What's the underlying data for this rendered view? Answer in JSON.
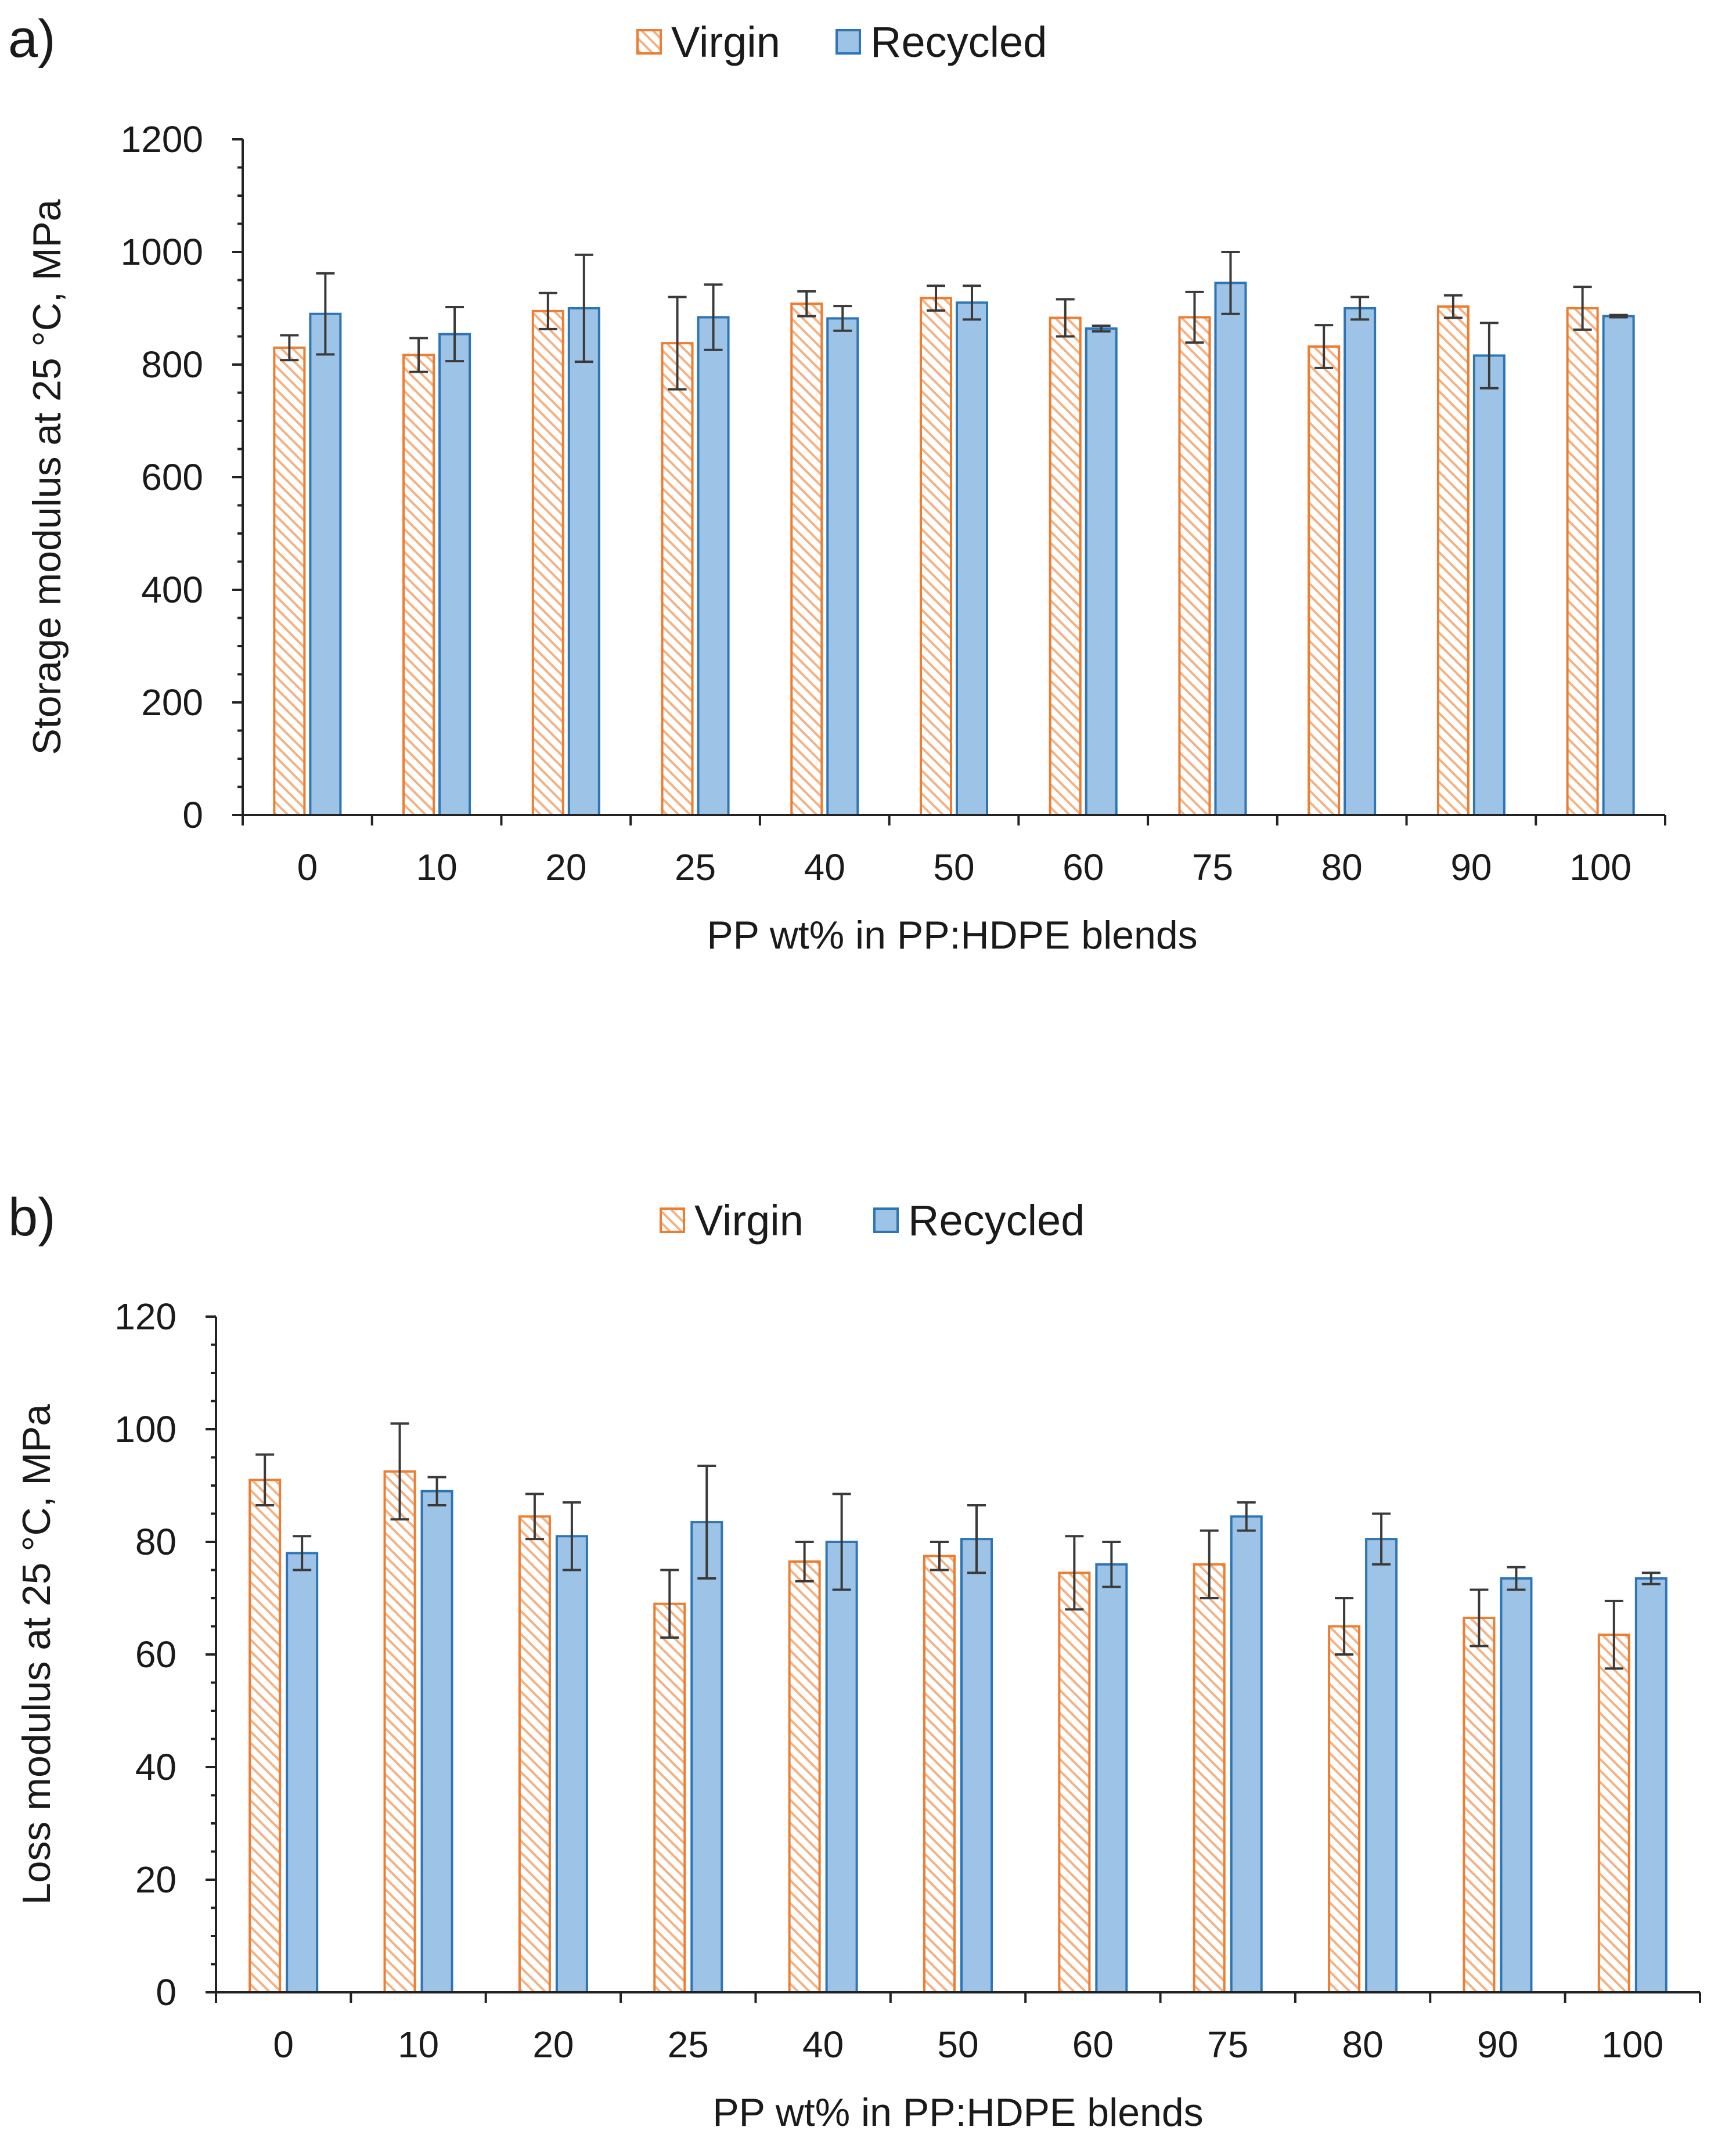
{
  "colors": {
    "virgin_stroke": "#ED7D31",
    "virgin_hatch": "#F4B183",
    "recycled_fill": "#9DC3E6",
    "recycled_stroke": "#2E75B6",
    "axis": "#222222",
    "text": "#1a1a1a"
  },
  "chart_data": [
    {
      "panel": "a)",
      "type": "bar",
      "categories": [
        "0",
        "10",
        "20",
        "25",
        "40",
        "50",
        "60",
        "75",
        "80",
        "90",
        "100"
      ],
      "series": [
        {
          "name": "Virgin",
          "values": [
            830,
            817,
            895,
            838,
            908,
            918,
            883,
            884,
            832,
            903,
            900
          ],
          "errors": [
            22,
            30,
            32,
            82,
            22,
            22,
            33,
            45,
            38,
            20,
            38
          ]
        },
        {
          "name": "Recycled",
          "values": [
            890,
            854,
            900,
            884,
            882,
            910,
            864,
            945,
            900,
            816,
            886
          ],
          "errors": [
            72,
            48,
            95,
            58,
            22,
            30,
            5,
            55,
            20,
            58,
            2
          ]
        }
      ],
      "xlabel": "PP wt% in PP:HDPE blends",
      "ylabel": "Storage modulus at 25 °C, MPa",
      "ylim": [
        0,
        1200
      ],
      "yticks": [
        "0",
        "200",
        "400",
        "600",
        "800",
        "1000",
        "1200"
      ],
      "legend": [
        "Virgin",
        "Recycled"
      ],
      "legend_position": "top-center",
      "grid": false
    },
    {
      "panel": "b)",
      "type": "bar",
      "categories": [
        "0",
        "10",
        "20",
        "25",
        "40",
        "50",
        "60",
        "75",
        "80",
        "90",
        "100"
      ],
      "series": [
        {
          "name": "Virgin",
          "values": [
            91,
            92.5,
            84.5,
            69,
            76.5,
            77.5,
            74.5,
            76,
            65,
            66.5,
            63.5
          ],
          "errors": [
            4.5,
            8.5,
            4,
            6,
            3.5,
            2.5,
            6.5,
            6,
            5,
            5,
            6
          ]
        },
        {
          "name": "Recycled",
          "values": [
            78,
            89,
            81,
            83.5,
            80,
            80.5,
            76,
            84.5,
            80.5,
            73.5,
            73.5
          ],
          "errors": [
            3,
            2.5,
            6,
            10,
            8.5,
            6,
            4,
            2.5,
            4.5,
            2,
            1
          ]
        }
      ],
      "xlabel": "PP wt% in PP:HDPE blends",
      "ylabel": "Loss modulus at 25 °C, MPa",
      "ylim": [
        0,
        120
      ],
      "yticks": [
        "0",
        "20",
        "40",
        "60",
        "80",
        "100",
        "120"
      ],
      "legend": [
        "Virgin",
        "Recycled"
      ],
      "legend_position": "top-center",
      "grid": false
    }
  ]
}
